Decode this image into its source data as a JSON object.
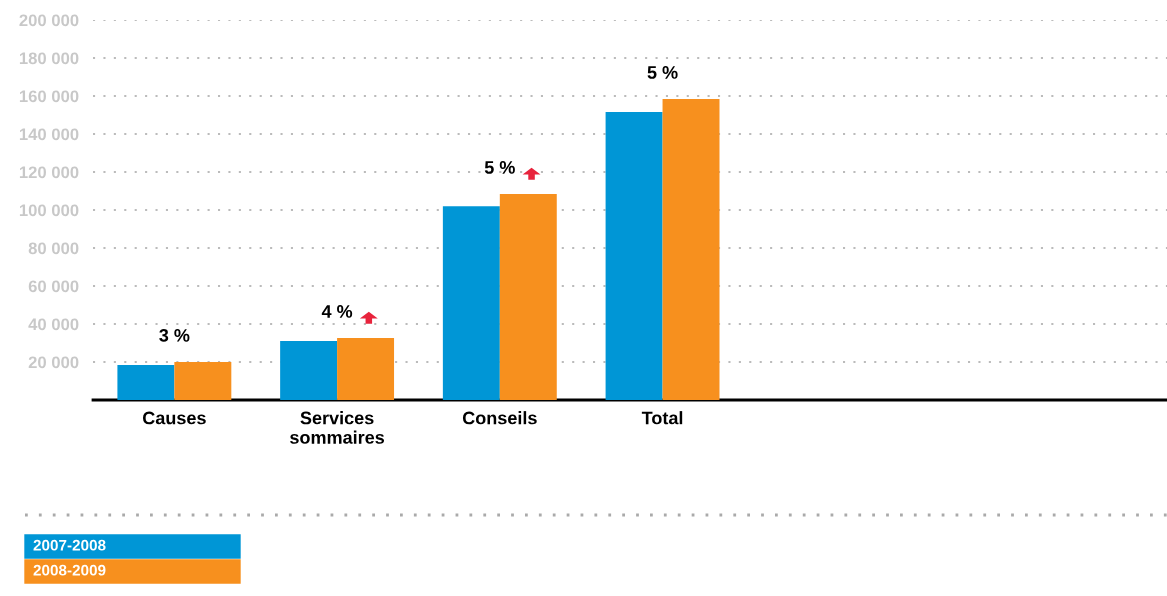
{
  "chart_data": {
    "type": "bar",
    "categories": [
      "Causes",
      "Services\nsommaires",
      "Conseils",
      "Total"
    ],
    "series": [
      {
        "name": "2007-2008",
        "color": "#0096d6",
        "values": [
          18400,
          31000,
          102000,
          151600
        ]
      },
      {
        "name": "2008-2009",
        "color": "#f7901e",
        "values": [
          20000,
          32600,
          108400,
          158400
        ]
      }
    ],
    "ylim": [
      0,
      200000
    ],
    "yticks": [
      {
        "value": 0,
        "label": null
      },
      {
        "value": 20000,
        "label": "20 000"
      },
      {
        "value": 40000,
        "label": "40 000"
      },
      {
        "value": 60000,
        "label": "60 000"
      },
      {
        "value": 80000,
        "label": "80 000"
      },
      {
        "value": 100000,
        "label": "100 000"
      },
      {
        "value": 120000,
        "label": "120 000"
      },
      {
        "value": 140000,
        "label": "140 000"
      },
      {
        "value": 160000,
        "label": "160 000"
      },
      {
        "value": 180000,
        "label": "180 000"
      },
      {
        "value": 200000,
        "label": "200 000"
      }
    ],
    "grid": "y",
    "legend": "bottom left",
    "annotations": [
      {
        "text": "3 %",
        "x": "Causes",
        "y": 20000
      },
      {
        "text": "4 %",
        "x": "Services\nsommaires",
        "y": 32600
      },
      {
        "text": "5 %",
        "x": "Conseils",
        "y": 108400
      },
      {
        "text": "5 %",
        "x": "Total",
        "y": 158400
      }
    ]
  }
}
